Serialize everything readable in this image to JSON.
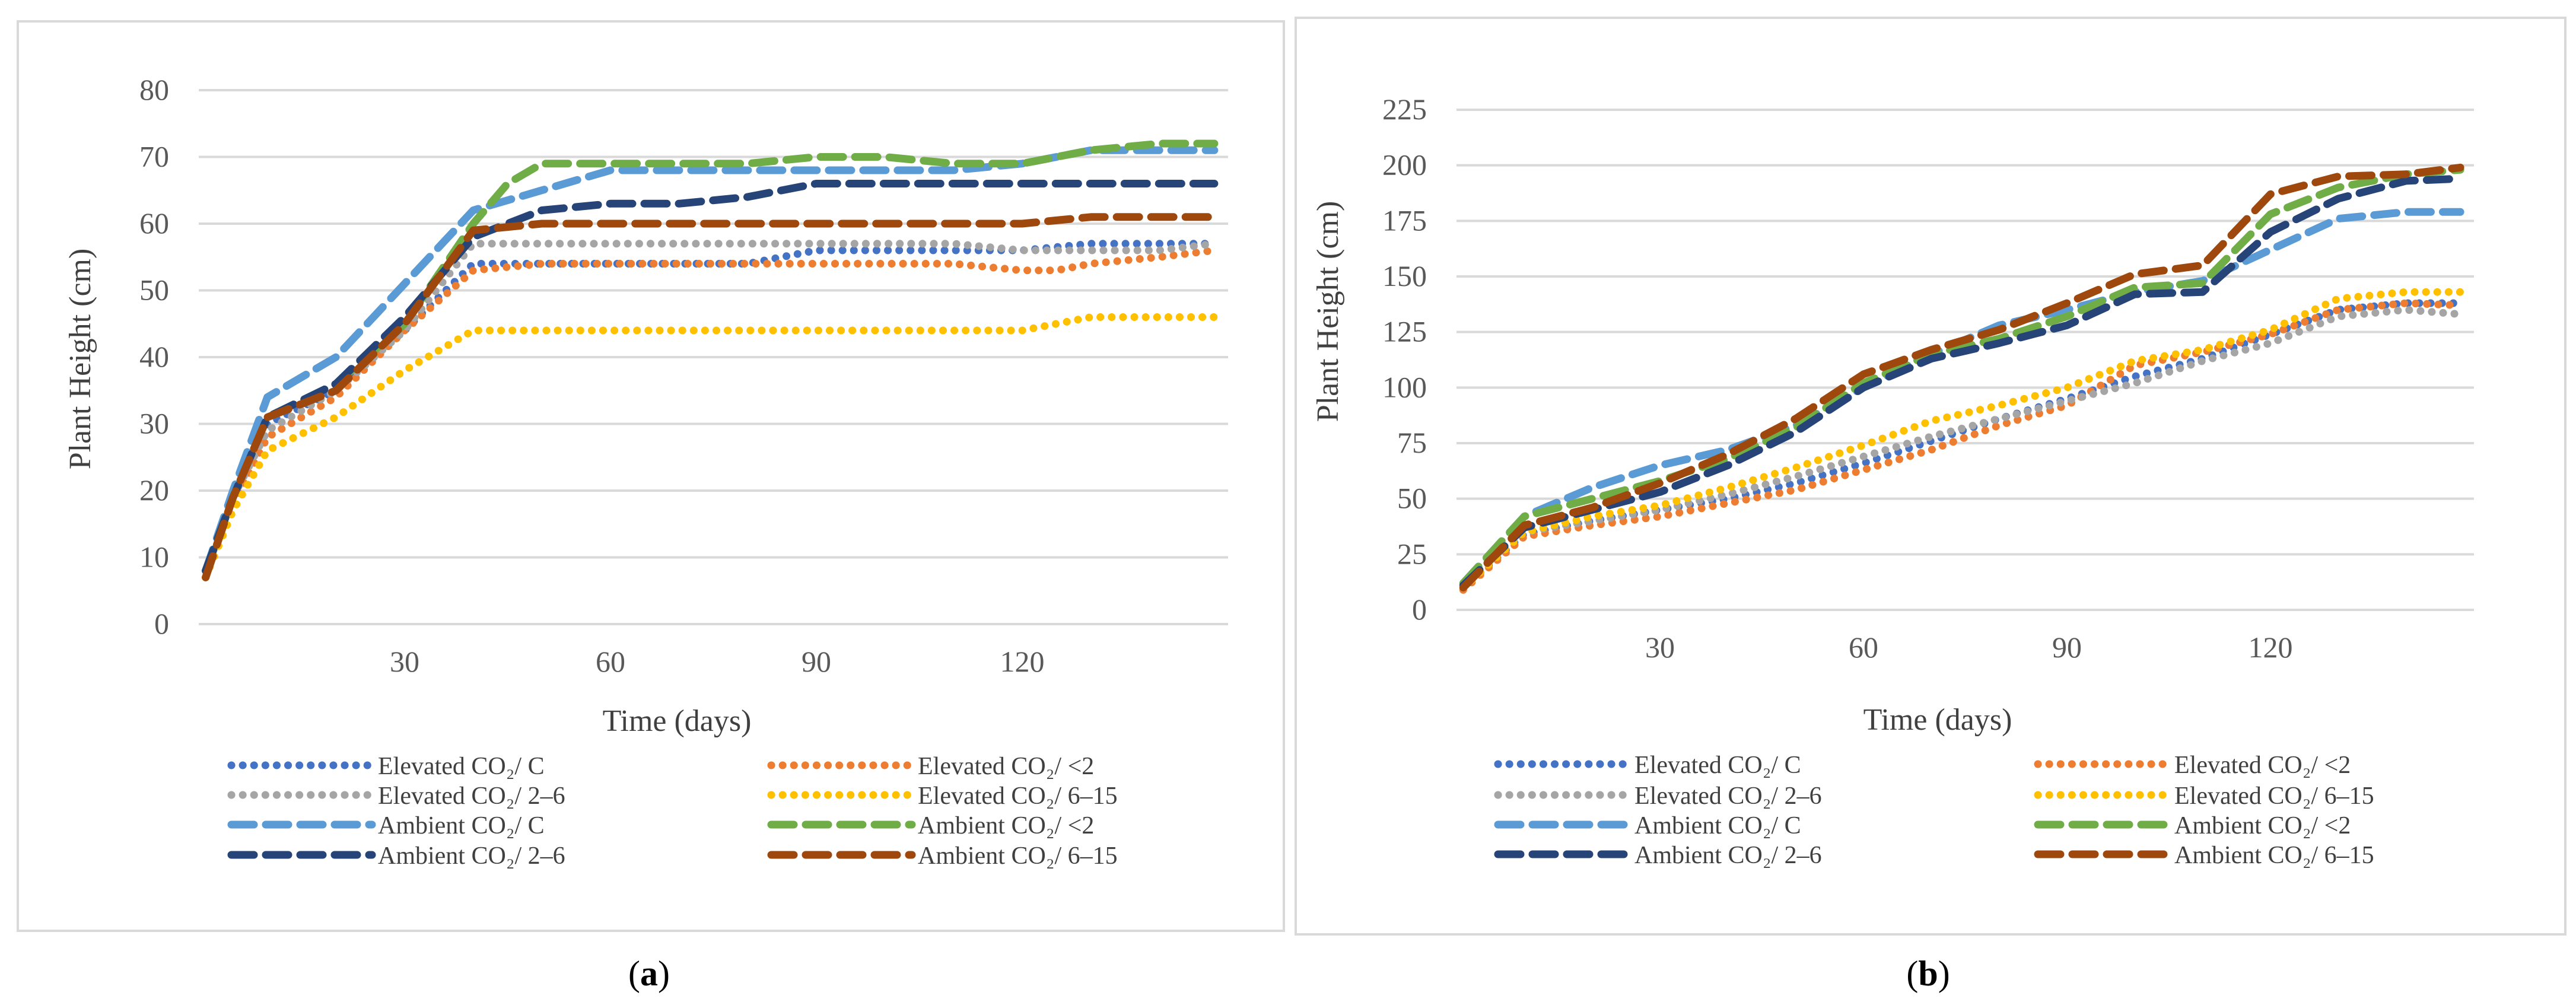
{
  "chart_data": [
    {
      "type": "line",
      "panel": "a",
      "caption_open": "(",
      "caption_letter": "a",
      "caption_close": ")",
      "xlabel": "Time (days)",
      "ylabel": "Plant Height (cm)",
      "xlim": [
        0,
        150
      ],
      "ylim": [
        0,
        80
      ],
      "xticks": [
        30,
        60,
        90,
        120
      ],
      "yticks": [
        0,
        10,
        20,
        30,
        40,
        50,
        60,
        70,
        80
      ],
      "grid": true,
      "legend_position": "bottom",
      "series": [
        {
          "name": "Elevated CO₂/ C",
          "color": "#4472C4",
          "style": "dotted",
          "x": [
            1,
            5,
            10,
            20,
            30,
            40,
            50,
            60,
            70,
            80,
            90,
            100,
            110,
            120,
            130,
            140,
            148
          ],
          "y": [
            8,
            19,
            30,
            35,
            44,
            54,
            54,
            54,
            54,
            54,
            56,
            56,
            56,
            56,
            57,
            57,
            57
          ]
        },
        {
          "name": "Elevated CO₂/ <2",
          "color": "#ED7D31",
          "style": "dotted",
          "x": [
            1,
            5,
            10,
            20,
            30,
            40,
            50,
            60,
            70,
            80,
            90,
            100,
            110,
            120,
            125,
            130,
            140,
            148
          ],
          "y": [
            7,
            18,
            28,
            34,
            44,
            53,
            54,
            54,
            54,
            54,
            54,
            54,
            54,
            53,
            53,
            54,
            55,
            56
          ]
        },
        {
          "name": "Elevated CO₂/ 2–6",
          "color": "#A5A5A5",
          "style": "dotted",
          "x": [
            1,
            5,
            10,
            20,
            30,
            40,
            50,
            60,
            70,
            80,
            90,
            100,
            110,
            120,
            130,
            140,
            148
          ],
          "y": [
            8,
            19,
            29,
            35,
            44,
            57,
            57,
            57,
            57,
            57,
            57,
            57,
            57,
            56,
            56,
            56,
            57
          ]
        },
        {
          "name": "Elevated CO₂/ 6–15",
          "color": "#FFC000",
          "style": "dotted",
          "x": [
            1,
            5,
            10,
            20,
            30,
            40,
            50,
            60,
            70,
            80,
            90,
            100,
            110,
            120,
            125,
            130,
            140,
            148
          ],
          "y": [
            7,
            17,
            26,
            31,
            38,
            44,
            44,
            44,
            44,
            44,
            44,
            44,
            44,
            44,
            45,
            46,
            46,
            46
          ]
        },
        {
          "name": "Ambient CO₂/ C",
          "color": "#5B9BD5",
          "style": "dashed",
          "x": [
            1,
            5,
            10,
            20,
            30,
            40,
            50,
            60,
            70,
            80,
            90,
            100,
            110,
            120,
            130,
            140,
            148
          ],
          "y": [
            8,
            20,
            34,
            40,
            51,
            62,
            65,
            68,
            68,
            68,
            68,
            68,
            68,
            69,
            71,
            71,
            71
          ]
        },
        {
          "name": "Ambient CO₂/ <2",
          "color": "#70AD47",
          "style": "dashed",
          "x": [
            1,
            5,
            10,
            20,
            30,
            40,
            45,
            50,
            60,
            70,
            80,
            90,
            100,
            110,
            120,
            130,
            140,
            148
          ],
          "y": [
            8,
            19,
            31,
            36,
            45,
            60,
            66,
            69,
            69,
            69,
            69,
            70,
            70,
            69,
            69,
            71,
            72,
            72
          ]
        },
        {
          "name": "Ambient CO₂/ 2–6",
          "color": "#264478",
          "style": "dashed",
          "x": [
            1,
            5,
            10,
            20,
            30,
            40,
            50,
            60,
            70,
            80,
            90,
            100,
            110,
            120,
            130,
            140,
            148
          ],
          "y": [
            8,
            19,
            31,
            36,
            46,
            58,
            62,
            63,
            63,
            64,
            66,
            66,
            66,
            66,
            66,
            66,
            66
          ]
        },
        {
          "name": "Ambient CO₂/ 6–15",
          "color": "#9E480E",
          "style": "dashed",
          "x": [
            1,
            5,
            10,
            20,
            30,
            40,
            50,
            60,
            70,
            80,
            90,
            100,
            110,
            120,
            130,
            140,
            148
          ],
          "y": [
            7,
            19,
            31,
            35,
            45,
            59,
            60,
            60,
            60,
            60,
            60,
            60,
            60,
            60,
            61,
            61,
            61
          ]
        }
      ]
    },
    {
      "type": "line",
      "panel": "b",
      "caption_open": "(",
      "caption_letter": "b",
      "caption_close": ")",
      "xlabel": "Time (days)",
      "ylabel": "Plant Height (cm)",
      "xlim": [
        0,
        150
      ],
      "ylim": [
        0,
        225
      ],
      "xticks": [
        30,
        60,
        90,
        120
      ],
      "yticks": [
        0,
        25,
        50,
        75,
        100,
        125,
        150,
        175,
        200,
        225
      ],
      "grid": true,
      "legend_position": "bottom",
      "series": [
        {
          "name": "Elevated CO₂/ C",
          "color": "#4472C4",
          "style": "dotted",
          "x": [
            1,
            10,
            20,
            30,
            40,
            50,
            60,
            70,
            80,
            90,
            100,
            110,
            120,
            130,
            140,
            148
          ],
          "y": [
            10,
            34,
            40,
            45,
            50,
            57,
            66,
            76,
            86,
            95,
            105,
            113,
            124,
            135,
            138,
            138
          ]
        },
        {
          "name": "Elevated CO₂/ <2",
          "color": "#ED7D31",
          "style": "dotted",
          "x": [
            1,
            10,
            20,
            30,
            40,
            50,
            60,
            70,
            80,
            90,
            100,
            110,
            120,
            130,
            140,
            148
          ],
          "y": [
            9,
            33,
            38,
            42,
            48,
            54,
            63,
            72,
            83,
            92,
            110,
            116,
            124,
            135,
            138,
            137
          ]
        },
        {
          "name": "Elevated CO₂/ 2–6",
          "color": "#A5A5A5",
          "style": "dotted",
          "x": [
            1,
            10,
            20,
            30,
            40,
            50,
            60,
            70,
            80,
            90,
            100,
            110,
            120,
            130,
            140,
            148
          ],
          "y": [
            10,
            35,
            40,
            45,
            52,
            60,
            69,
            78,
            86,
            94,
            102,
            112,
            120,
            132,
            135,
            133
          ]
        },
        {
          "name": "Elevated CO₂/ 6–15",
          "color": "#FFC000",
          "style": "dotted",
          "x": [
            1,
            10,
            20,
            30,
            40,
            50,
            60,
            70,
            80,
            90,
            100,
            110,
            120,
            130,
            140,
            148
          ],
          "y": [
            10,
            35,
            42,
            47,
            55,
            64,
            74,
            85,
            92,
            100,
            112,
            117,
            126,
            140,
            143,
            143
          ]
        },
        {
          "name": "Ambient CO₂/ C",
          "color": "#5B9BD5",
          "style": "dashed",
          "x": [
            1,
            10,
            20,
            30,
            40,
            50,
            60,
            70,
            80,
            90,
            100,
            110,
            120,
            130,
            140,
            148
          ],
          "y": [
            12,
            42,
            55,
            65,
            72,
            83,
            100,
            115,
            128,
            135,
            143,
            148,
            162,
            176,
            179,
            179
          ]
        },
        {
          "name": "Ambient CO₂/ <2",
          "color": "#70AD47",
          "style": "dashed",
          "x": [
            1,
            10,
            20,
            30,
            40,
            50,
            60,
            70,
            80,
            90,
            100,
            110,
            120,
            130,
            140,
            148
          ],
          "y": [
            12,
            42,
            50,
            58,
            68,
            82,
            102,
            115,
            122,
            132,
            145,
            147,
            178,
            190,
            196,
            198
          ]
        },
        {
          "name": "Ambient CO₂/ 2–6",
          "color": "#264478",
          "style": "dashed",
          "x": [
            1,
            10,
            20,
            30,
            40,
            50,
            60,
            70,
            80,
            90,
            100,
            110,
            120,
            130,
            140,
            148
          ],
          "y": [
            11,
            37,
            45,
            53,
            65,
            80,
            100,
            113,
            120,
            128,
            142,
            143,
            170,
            185,
            193,
            194
          ]
        },
        {
          "name": "Ambient CO₂/ 6–15",
          "color": "#9E480E",
          "style": "dashed",
          "x": [
            1,
            10,
            20,
            30,
            40,
            50,
            60,
            70,
            80,
            90,
            100,
            110,
            120,
            130,
            140,
            148
          ],
          "y": [
            10,
            38,
            46,
            57,
            70,
            86,
            106,
            117,
            126,
            138,
            151,
            155,
            187,
            195,
            196,
            199
          ]
        }
      ]
    }
  ]
}
